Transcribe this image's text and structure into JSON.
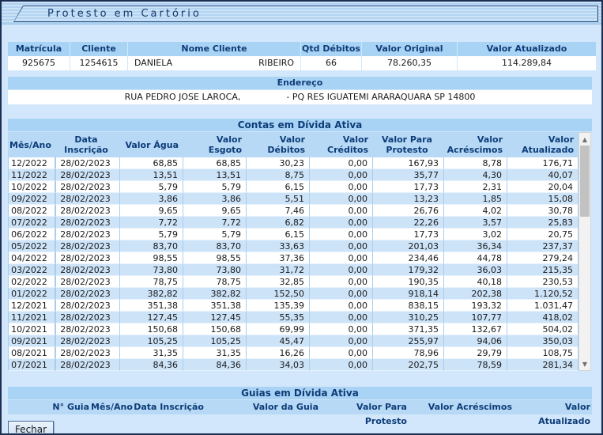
{
  "window": {
    "title": "Protesto em Cartório"
  },
  "client": {
    "headers": {
      "matricula": "Matrícula",
      "cliente": "Cliente",
      "nome": "Nome Cliente",
      "qtd": "Qtd Débitos",
      "valor_original": "Valor Original",
      "valor_atualizado": "Valor Atualizado"
    },
    "row": {
      "matricula": "925675",
      "cliente": "1254615",
      "nome_first": "DANIELA",
      "nome_last": "RIBEIRO",
      "qtd": "66",
      "valor_original": "78.260,35",
      "valor_atualizado": "114.289,84"
    }
  },
  "endereco": {
    "label": "Endereço",
    "part1": "RUA PEDRO JOSE LAROCA,",
    "part2": "- PQ RES IGUATEMI ARARAQUARA SP 14800"
  },
  "contas": {
    "title": "Contas em Dívida Ativa",
    "columns": [
      "Mês/Ano",
      "Data Inscrição",
      "Valor Água",
      "Valor Esgoto",
      "Valor Débitos",
      "Valor Créditos",
      "Valor Para Protesto",
      "Valor Acréscimos",
      "Valor Atualizado"
    ],
    "rows": [
      [
        "12/2022",
        "28/02/2023",
        "68,85",
        "68,85",
        "30,23",
        "0,00",
        "167,93",
        "8,78",
        "176,71"
      ],
      [
        "11/2022",
        "28/02/2023",
        "13,51",
        "13,51",
        "8,75",
        "0,00",
        "35,77",
        "4,30",
        "40,07"
      ],
      [
        "10/2022",
        "28/02/2023",
        "5,79",
        "5,79",
        "6,15",
        "0,00",
        "17,73",
        "2,31",
        "20,04"
      ],
      [
        "09/2022",
        "28/02/2023",
        "3,86",
        "3,86",
        "5,51",
        "0,00",
        "13,23",
        "1,85",
        "15,08"
      ],
      [
        "08/2022",
        "28/02/2023",
        "9,65",
        "9,65",
        "7,46",
        "0,00",
        "26,76",
        "4,02",
        "30,78"
      ],
      [
        "07/2022",
        "28/02/2023",
        "7,72",
        "7,72",
        "6,82",
        "0,00",
        "22,26",
        "3,57",
        "25,83"
      ],
      [
        "06/2022",
        "28/02/2023",
        "5,79",
        "5,79",
        "6,15",
        "0,00",
        "17,73",
        "3,02",
        "20,75"
      ],
      [
        "05/2022",
        "28/02/2023",
        "83,70",
        "83,70",
        "33,63",
        "0,00",
        "201,03",
        "36,34",
        "237,37"
      ],
      [
        "04/2022",
        "28/02/2023",
        "98,55",
        "98,55",
        "37,36",
        "0,00",
        "234,46",
        "44,78",
        "279,24"
      ],
      [
        "03/2022",
        "28/02/2023",
        "73,80",
        "73,80",
        "31,72",
        "0,00",
        "179,32",
        "36,03",
        "215,35"
      ],
      [
        "02/2022",
        "28/02/2023",
        "78,75",
        "78,75",
        "32,85",
        "0,00",
        "190,35",
        "40,18",
        "230,53"
      ],
      [
        "01/2022",
        "28/02/2023",
        "382,82",
        "382,82",
        "152,50",
        "0,00",
        "918,14",
        "202,38",
        "1.120,52"
      ],
      [
        "12/2021",
        "28/02/2023",
        "351,38",
        "351,38",
        "135,39",
        "0,00",
        "838,15",
        "193,32",
        "1.031,47"
      ],
      [
        "11/2021",
        "28/02/2023",
        "127,45",
        "127,45",
        "55,35",
        "0,00",
        "310,25",
        "107,77",
        "418,02"
      ],
      [
        "10/2021",
        "28/02/2023",
        "150,68",
        "150,68",
        "69,99",
        "0,00",
        "371,35",
        "132,67",
        "504,02"
      ],
      [
        "09/2021",
        "28/02/2023",
        "105,25",
        "105,25",
        "45,47",
        "0,00",
        "255,97",
        "94,06",
        "350,03"
      ],
      [
        "08/2021",
        "28/02/2023",
        "31,35",
        "31,35",
        "16,26",
        "0,00",
        "78,96",
        "29,79",
        "108,75"
      ],
      [
        "07/2021",
        "28/02/2023",
        "84,36",
        "84,36",
        "34,03",
        "0,00",
        "202,75",
        "78,59",
        "281,34"
      ]
    ]
  },
  "guias": {
    "title": "Guias em Dívida Ativa",
    "columns": [
      "N° Guia",
      "Mês/Ano",
      "Data Inscrição",
      "Valor da Guia",
      "Valor Para Protesto",
      "Valor Acréscimos",
      "Valor Atualizado"
    ],
    "rows": []
  },
  "scrollbar": {
    "up_glyph": "▲",
    "down_glyph": "▼"
  },
  "footer": {
    "fechar_label": "Fechar"
  },
  "colors": {
    "header_bg": "#a9d3f4",
    "col_header_bg": "#b7d9f6",
    "row_alt": "#cde3f8",
    "accent_text": "#0d3c78"
  }
}
